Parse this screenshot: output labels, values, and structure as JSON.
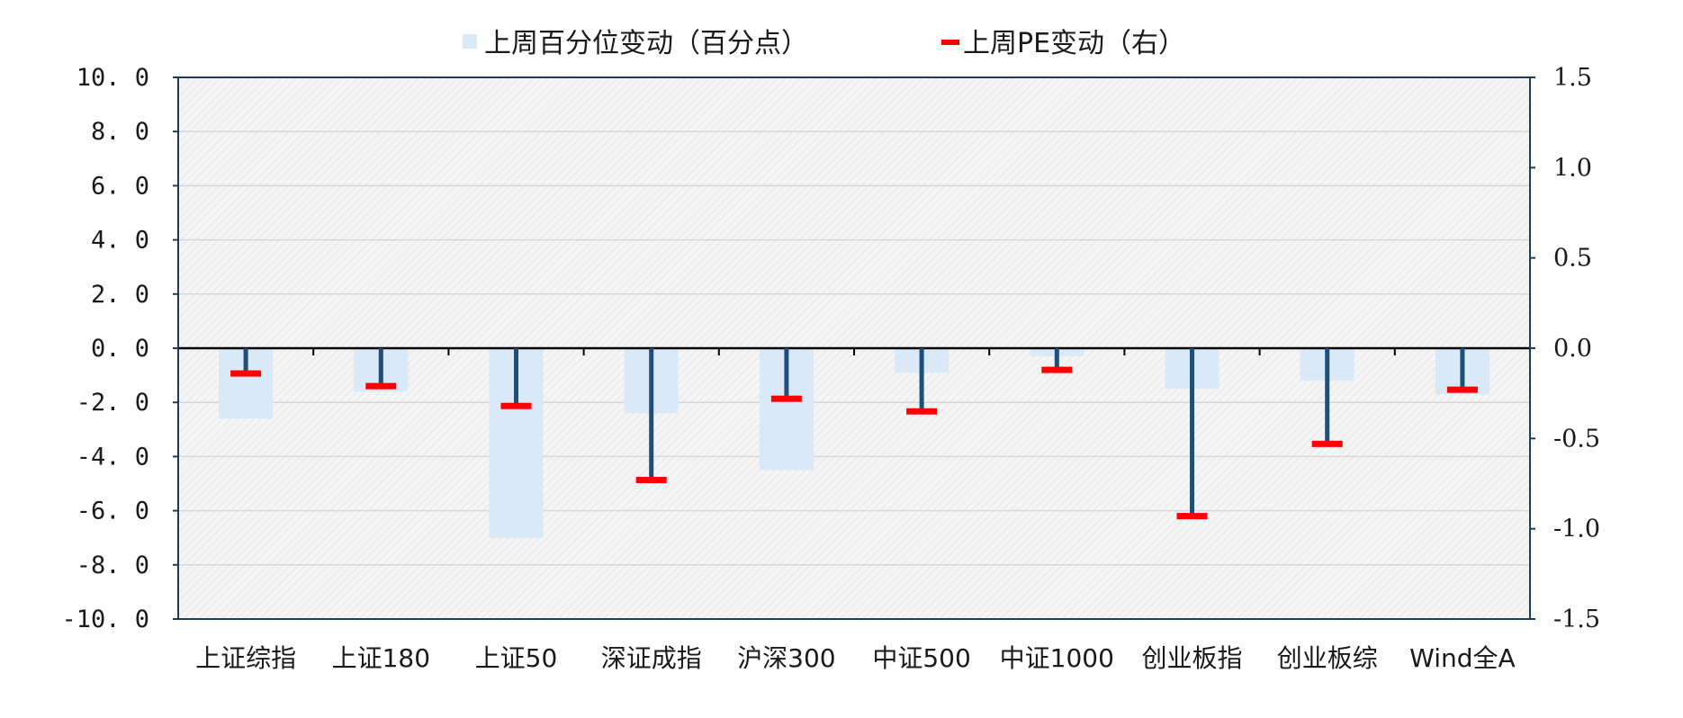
{
  "chart_data": {
    "type": "bar",
    "categories": [
      "上证综指",
      "上证180",
      "上证50",
      "深证成指",
      "沪深300",
      "中证500",
      "中证1000",
      "创业板指",
      "创业板综",
      "Wind全A"
    ],
    "series": [
      {
        "name": "上周百分位变动（百分点）",
        "axis": "left",
        "mark": "bar",
        "color": "#d9e9f8",
        "values": [
          -2.6,
          -1.6,
          -7.0,
          -2.4,
          -4.5,
          -0.9,
          -0.3,
          -1.5,
          -1.2,
          -1.7
        ]
      },
      {
        "name": "上周PE变动（右）",
        "axis": "right",
        "mark": "lollipop",
        "color": "#ff0000",
        "stem_color": "#1f4e79",
        "values": [
          -0.14,
          -0.21,
          -0.32,
          -0.73,
          -0.28,
          -0.35,
          -0.12,
          -0.93,
          -0.53,
          -0.23
        ]
      }
    ],
    "y_left": {
      "lim": [
        -10,
        10
      ],
      "ticks": [
        "10. 0",
        "8. 0",
        "6. 0",
        "4. 0",
        "2. 0",
        "0. 0",
        "-2. 0",
        "-4. 0",
        "-6. 0",
        "-8. 0",
        "-10. 0"
      ]
    },
    "y_right": {
      "lim": [
        -1.5,
        1.5
      ],
      "ticks": [
        "1.5",
        "1.0",
        "0.5",
        "0.0",
        "-0.5",
        "-1.0",
        "-1.5"
      ]
    },
    "grid": true,
    "legend_position": "top-center",
    "plot_background": "#f4f4f4",
    "grid_color": "#d6d6d6",
    "frame_color": "#1f3b5a"
  }
}
